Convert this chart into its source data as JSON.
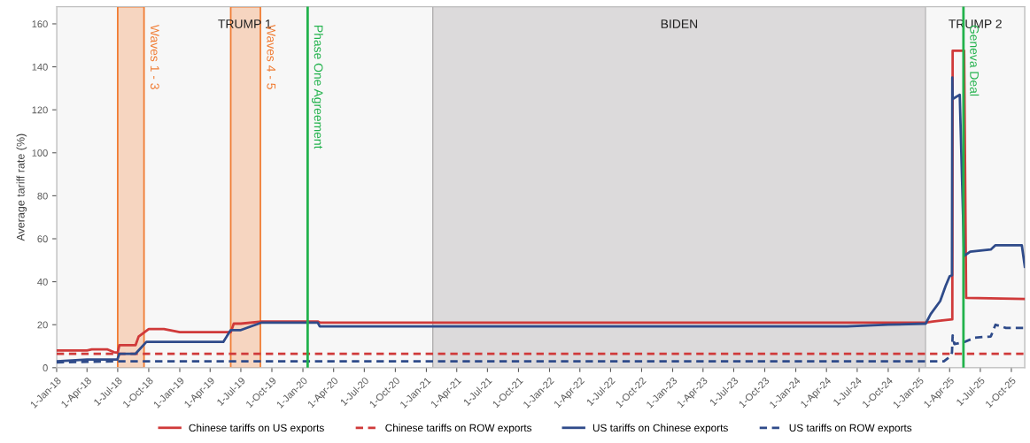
{
  "chart_data": {
    "type": "line",
    "ylabel": "Average tariff rate (%)",
    "xlim": [
      "2018-01-01",
      "2025-11-10"
    ],
    "ylim": [
      0,
      168
    ],
    "yticks": [
      0,
      20,
      40,
      60,
      80,
      100,
      120,
      140,
      160
    ],
    "xticks": [
      {
        "value": "2018-01-01",
        "label": "1-Jan-18"
      },
      {
        "value": "2018-04-01",
        "label": "1-Apr-18"
      },
      {
        "value": "2018-07-01",
        "label": "1-Jul-18"
      },
      {
        "value": "2018-10-01",
        "label": "1-Oct-18"
      },
      {
        "value": "2019-01-01",
        "label": "1-Jan-19"
      },
      {
        "value": "2019-04-01",
        "label": "1-Apr-19"
      },
      {
        "value": "2019-07-01",
        "label": "1-Jul-19"
      },
      {
        "value": "2019-10-01",
        "label": "1-Oct-19"
      },
      {
        "value": "2020-01-01",
        "label": "1-Jan-20"
      },
      {
        "value": "2020-04-01",
        "label": "1-Apr-20"
      },
      {
        "value": "2020-07-01",
        "label": "1-Jul-20"
      },
      {
        "value": "2020-10-01",
        "label": "1-Oct-20"
      },
      {
        "value": "2021-01-01",
        "label": "1-Jan-21"
      },
      {
        "value": "2021-04-01",
        "label": "1-Apr-21"
      },
      {
        "value": "2021-07-01",
        "label": "1-Jul-21"
      },
      {
        "value": "2021-10-01",
        "label": "1-Oct-21"
      },
      {
        "value": "2022-01-01",
        "label": "1-Jan-22"
      },
      {
        "value": "2022-04-01",
        "label": "1-Apr-22"
      },
      {
        "value": "2022-07-01",
        "label": "1-Jul-22"
      },
      {
        "value": "2022-10-01",
        "label": "1-Oct-22"
      },
      {
        "value": "2023-01-01",
        "label": "1-Jan-23"
      },
      {
        "value": "2023-04-01",
        "label": "1-Apr-23"
      },
      {
        "value": "2023-07-01",
        "label": "1-Jul-23"
      },
      {
        "value": "2023-10-01",
        "label": "1-Oct-23"
      },
      {
        "value": "2024-01-01",
        "label": "1-Jan-24"
      },
      {
        "value": "2024-04-01",
        "label": "1-Apr-24"
      },
      {
        "value": "2024-07-01",
        "label": "1-Jul-24"
      },
      {
        "value": "2024-10-01",
        "label": "1-Oct-24"
      },
      {
        "value": "2025-01-01",
        "label": "1-Jan-25"
      },
      {
        "value": "2025-04-01",
        "label": "1-Apr-25"
      },
      {
        "value": "2025-07-01",
        "label": "1-Jul-25"
      },
      {
        "value": "2025-10-01",
        "label": "1-Oct-25"
      }
    ],
    "bands": [
      {
        "axis": "x",
        "from": "2018-01-01",
        "to": "2021-01-20",
        "label": "TRUMP 1",
        "color": "#f7f7f7"
      },
      {
        "axis": "x",
        "from": "2021-01-20",
        "to": "2025-01-20",
        "label": "BIDEN",
        "color": "#dcdadb"
      },
      {
        "axis": "x",
        "from": "2025-01-20",
        "to": "2025-11-10",
        "label": "TRUMP 2",
        "color": "#f7f7f7"
      },
      {
        "axis": "x",
        "from": "2018-07-01",
        "to": "2018-09-17",
        "label": "Waves 1 - 3",
        "color": "#f6d5c0"
      },
      {
        "axis": "x",
        "from": "2019-06-01",
        "to": "2019-08-28",
        "label": "Waves 4 - 5",
        "color": "#f6d5c0"
      }
    ],
    "ref_lines": [
      {
        "axis": "x",
        "value": "2020-01-15",
        "label": "Phase One Agreement",
        "color": "#22b24c"
      },
      {
        "axis": "x",
        "value": "2025-05-12",
        "label": "Geneva Deal",
        "color": "#22b24c"
      }
    ],
    "legend": "bottom",
    "series": [
      {
        "name": "Chinese tariffs on US exports",
        "color": "#d03a3a",
        "line_style": "solid",
        "x": [
          "2018-01-01",
          "2018-04-01",
          "2018-04-15",
          "2018-06-01",
          "2018-06-20",
          "2018-07-01",
          "2018-07-06",
          "2018-08-23",
          "2018-09-01",
          "2018-10-01",
          "2018-11-15",
          "2019-01-01",
          "2019-06-01",
          "2019-06-10",
          "2019-07-01",
          "2019-09-01",
          "2020-02-14",
          "2020-02-20",
          "2025-01-20",
          "2025-02-10",
          "2025-03-10",
          "2025-04-09",
          "2025-04-10",
          "2025-05-14",
          "2025-05-20",
          "2025-11-10"
        ],
        "values": [
          8,
          8,
          8.5,
          8.5,
          7.2,
          7,
          10.5,
          10.5,
          14.5,
          18,
          18,
          16.5,
          16.5,
          20.5,
          20.5,
          21.5,
          21.5,
          21,
          21,
          21.5,
          22,
          22.5,
          147.5,
          147.5,
          32.5,
          32
        ]
      },
      {
        "name": "Chinese tariffs on ROW exports",
        "color": "#d03a3a",
        "line_style": "dashed",
        "x": [
          "2018-01-01",
          "2025-11-10"
        ],
        "values": [
          6.5,
          6.5
        ]
      },
      {
        "name": "US tariffs on Chinese exports",
        "color": "#2f4b8a",
        "line_style": "solid",
        "x": [
          "2018-01-01",
          "2018-04-01",
          "2018-06-30",
          "2018-07-06",
          "2018-08-23",
          "2018-09-24",
          "2019-05-10",
          "2019-06-01",
          "2019-07-01",
          "2019-09-01",
          "2020-02-14",
          "2020-02-20",
          "2024-06-01",
          "2024-10-01",
          "2025-01-20",
          "2025-02-04",
          "2025-03-04",
          "2025-03-20",
          "2025-04-01",
          "2025-04-08",
          "2025-04-09",
          "2025-04-10",
          "2025-05-01",
          "2025-05-14",
          "2025-06-01",
          "2025-08-01",
          "2025-08-15",
          "2025-11-01",
          "2025-11-10"
        ],
        "values": [
          3,
          3.8,
          3.8,
          6.5,
          6.5,
          12,
          12,
          17.5,
          17.5,
          21,
          21,
          19.2,
          19.2,
          20,
          20.5,
          25,
          31,
          38,
          42.5,
          43,
          135,
          125,
          127,
          52,
          54,
          55,
          57,
          57,
          47
        ]
      },
      {
        "name": "US tariffs on ROW exports",
        "color": "#2f4b8a",
        "line_style": "dashed",
        "x": [
          "2018-01-01",
          "2018-07-01",
          "2025-03-15",
          "2025-04-01",
          "2025-04-08",
          "2025-04-10",
          "2025-04-15",
          "2025-05-15",
          "2025-06-15",
          "2025-08-01",
          "2025-08-15",
          "2025-09-15",
          "2025-11-10"
        ],
        "values": [
          2.5,
          3,
          3,
          5,
          7,
          15,
          11,
          12,
          14,
          14.5,
          20,
          18.5,
          18.5
        ]
      }
    ]
  }
}
